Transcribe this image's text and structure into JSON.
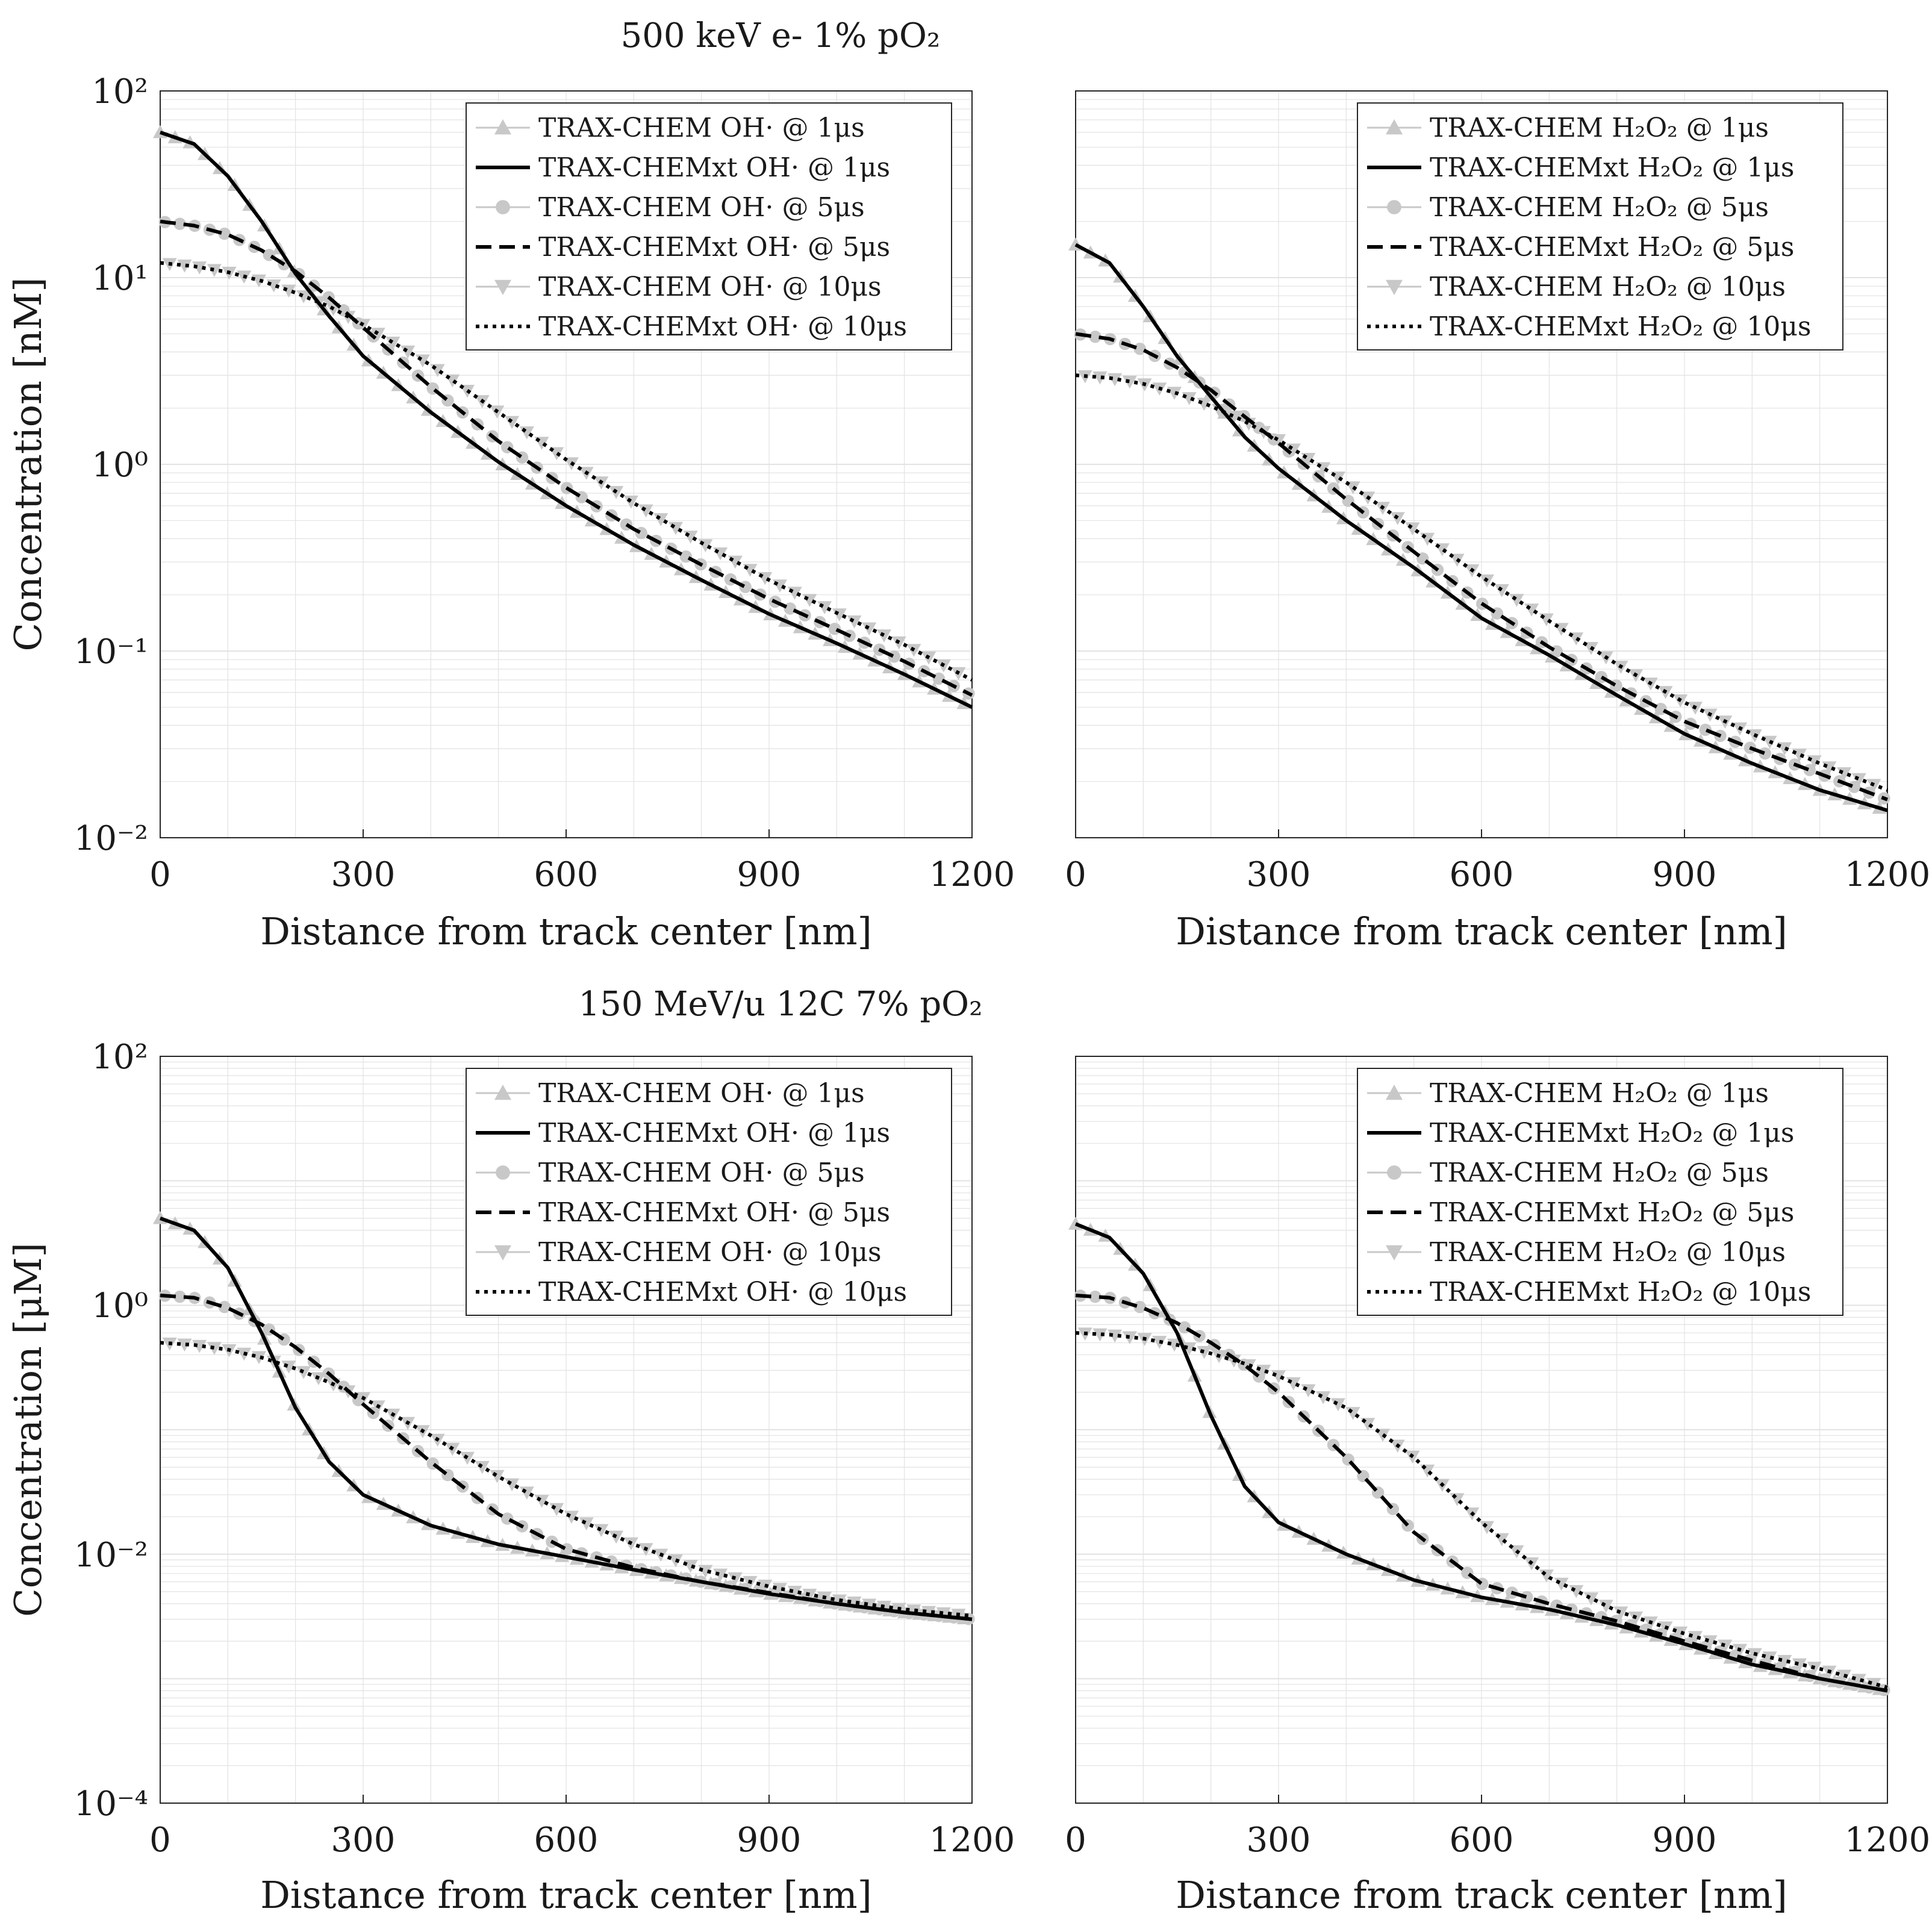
{
  "row_titles": [
    "500 keV e- 1% pO₂",
    "150 MeV/u 12C 7% pO₂"
  ],
  "ytick_labels": {
    "top": [
      "10²",
      "10¹",
      "10⁰",
      "10⁻¹",
      "10⁻²"
    ],
    "bottom": [
      "10²",
      "10⁰",
      "10⁻²",
      "10⁻⁴"
    ]
  },
  "legend": {
    "top_left": [
      "TRAX-CHEM OH· @ 1μs",
      "TRAX-CHEMxt OH· @ 1μs",
      "TRAX-CHEM OH· @ 5μs",
      "TRAX-CHEMxt OH· @ 5μs",
      "TRAX-CHEM OH· @ 10μs",
      "TRAX-CHEMxt OH· @ 10μs"
    ],
    "top_right": [
      "TRAX-CHEM H₂O₂ @ 1μs",
      "TRAX-CHEMxt H₂O₂ @ 1μs",
      "TRAX-CHEM H₂O₂ @ 5μs",
      "TRAX-CHEMxt H₂O₂ @ 5μs",
      "TRAX-CHEM H₂O₂ @ 10μs",
      "TRAX-CHEMxt H₂O₂ @ 10μs"
    ],
    "bottom_left": [
      "TRAX-CHEM OH· @ 1μs",
      "TRAX-CHEMxt OH· @ 1μs",
      "TRAX-CHEM OH· @ 5μs",
      "TRAX-CHEMxt OH· @ 5μs",
      "TRAX-CHEM OH· @ 10μs",
      "TRAX-CHEMxt OH· @ 10μs"
    ],
    "bottom_right": [
      "TRAX-CHEM H₂O₂ @ 1μs",
      "TRAX-CHEMxt H₂O₂ @ 1μs",
      "TRAX-CHEM H₂O₂ @ 5μs",
      "TRAX-CHEMxt H₂O₂ @ 5μs",
      "TRAX-CHEM H₂O₂ @ 10μs",
      "TRAX-CHEMxt H₂O₂ @ 10μs"
    ]
  },
  "colors": {
    "line": "#000000",
    "marker": "#c8c8c8",
    "grid": "#e2e2e2",
    "axis": "#262626"
  },
  "chart_data": [
    {
      "id": "top_left",
      "type": "line",
      "yscale": "log",
      "xlabel": "Distance from track center [nm]",
      "ylabel": "Concentration [nM]",
      "xlim": [
        0,
        1200
      ],
      "ylim": [
        0.01,
        100
      ],
      "xticks": [
        0,
        300,
        600,
        900,
        1200
      ],
      "yticks": [
        100,
        10,
        1,
        0.1,
        0.01
      ],
      "x": [
        0,
        50,
        100,
        150,
        200,
        250,
        300,
        400,
        500,
        600,
        700,
        800,
        900,
        1000,
        1100,
        1200
      ],
      "series": [
        {
          "name": "TRAX-CHEMxt OH· @ 1μs",
          "style": "solid",
          "values": [
            60,
            52,
            35,
            20,
            10.5,
            6.2,
            3.8,
            1.9,
            1.03,
            0.6,
            0.37,
            0.24,
            0.158,
            0.11,
            0.075,
            0.05
          ]
        },
        {
          "name": "TRAX-CHEMxt OH· @ 5μs",
          "style": "dashed",
          "values": [
            20,
            19,
            17,
            14,
            10.8,
            7.8,
            5.4,
            2.6,
            1.33,
            0.75,
            0.45,
            0.29,
            0.19,
            0.13,
            0.088,
            0.058
          ]
        },
        {
          "name": "TRAX-CHEMxt OH· @ 10μs",
          "style": "dotted",
          "values": [
            12,
            11.5,
            10.7,
            9.6,
            8.3,
            7,
            5.6,
            3.4,
            1.9,
            1.06,
            0.62,
            0.38,
            0.24,
            0.16,
            0.108,
            0.07
          ]
        }
      ]
    },
    {
      "id": "top_right",
      "type": "line",
      "yscale": "log",
      "xlabel": "Distance from track center [nm]",
      "ylabel": "",
      "xlim": [
        0,
        1200
      ],
      "ylim": [
        0.01,
        100
      ],
      "xticks": [
        0,
        300,
        600,
        900,
        1200
      ],
      "yticks": [
        100,
        10,
        1,
        0.1,
        0.01
      ],
      "x": [
        0,
        50,
        100,
        150,
        200,
        250,
        300,
        400,
        500,
        600,
        700,
        800,
        900,
        1000,
        1100,
        1200
      ],
      "series": [
        {
          "name": "TRAX-CHEMxt H₂O₂ @ 1μs",
          "style": "solid",
          "values": [
            15,
            12,
            7,
            3.8,
            2.3,
            1.4,
            0.95,
            0.5,
            0.28,
            0.15,
            0.095,
            0.058,
            0.036,
            0.025,
            0.018,
            0.014
          ]
        },
        {
          "name": "TRAX-CHEMxt H₂O₂ @ 5μs",
          "style": "dashed",
          "values": [
            5,
            4.7,
            4.1,
            3.3,
            2.5,
            1.8,
            1.3,
            0.65,
            0.34,
            0.18,
            0.105,
            0.065,
            0.042,
            0.03,
            0.022,
            0.016
          ]
        },
        {
          "name": "TRAX-CHEMxt H₂O₂ @ 10μs",
          "style": "dotted",
          "values": [
            3,
            2.9,
            2.7,
            2.4,
            2.05,
            1.7,
            1.35,
            0.8,
            0.45,
            0.25,
            0.145,
            0.085,
            0.053,
            0.036,
            0.025,
            0.018
          ]
        }
      ]
    },
    {
      "id": "bottom_left",
      "type": "line",
      "yscale": "log",
      "xlabel": "Distance from track center [nm]",
      "ylabel": "Concentration [μM]",
      "xlim": [
        0,
        1200
      ],
      "ylim": [
        0.0001,
        100
      ],
      "xticks": [
        0,
        300,
        600,
        900,
        1200
      ],
      "yticks": [
        100,
        1,
        0.01,
        0.0001
      ],
      "x": [
        0,
        50,
        100,
        150,
        200,
        250,
        300,
        400,
        500,
        600,
        700,
        800,
        900,
        1000,
        1100,
        1200
      ],
      "series": [
        {
          "name": "TRAX-CHEMxt OH· @ 1μs",
          "style": "solid",
          "values": [
            5,
            4,
            2,
            0.6,
            0.15,
            0.055,
            0.03,
            0.017,
            0.012,
            0.0095,
            0.0075,
            0.006,
            0.0048,
            0.004,
            0.0034,
            0.003
          ]
        },
        {
          "name": "TRAX-CHEMxt OH· @ 5μs",
          "style": "dashed",
          "values": [
            1.2,
            1.15,
            0.95,
            0.7,
            0.46,
            0.28,
            0.16,
            0.055,
            0.021,
            0.011,
            0.0078,
            0.006,
            0.0049,
            0.004,
            0.0034,
            0.003
          ]
        },
        {
          "name": "TRAX-CHEMxt OH· @ 10μs",
          "style": "dotted",
          "values": [
            0.5,
            0.48,
            0.44,
            0.38,
            0.31,
            0.24,
            0.18,
            0.09,
            0.042,
            0.021,
            0.012,
            0.0075,
            0.0055,
            0.0043,
            0.0036,
            0.0032
          ]
        }
      ]
    },
    {
      "id": "bottom_right",
      "type": "line",
      "yscale": "log",
      "xlabel": "Distance from track center [nm]",
      "ylabel": "",
      "xlim": [
        0,
        1200
      ],
      "ylim": [
        0.0001,
        100
      ],
      "xticks": [
        0,
        300,
        600,
        900,
        1200
      ],
      "yticks": [
        100,
        1,
        0.01,
        0.0001
      ],
      "x": [
        0,
        50,
        100,
        150,
        200,
        250,
        300,
        400,
        500,
        600,
        700,
        800,
        900,
        1000,
        1100,
        1200
      ],
      "series": [
        {
          "name": "TRAX-CHEMxt H₂O₂ @ 1μs",
          "style": "solid",
          "values": [
            4.5,
            3.5,
            1.8,
            0.6,
            0.13,
            0.035,
            0.018,
            0.01,
            0.0062,
            0.0045,
            0.0036,
            0.0027,
            0.0019,
            0.0013,
            0.001,
            0.0008
          ]
        },
        {
          "name": "TRAX-CHEMxt H₂O₂ @ 5μs",
          "style": "dashed",
          "values": [
            1.2,
            1.15,
            0.95,
            0.72,
            0.5,
            0.33,
            0.2,
            0.06,
            0.015,
            0.0058,
            0.004,
            0.0029,
            0.002,
            0.0014,
            0.001,
            0.0008
          ]
        },
        {
          "name": "TRAX-CHEMxt H₂O₂ @ 10μs",
          "style": "dotted",
          "values": [
            0.6,
            0.58,
            0.54,
            0.48,
            0.41,
            0.34,
            0.27,
            0.15,
            0.06,
            0.018,
            0.0065,
            0.0035,
            0.0023,
            0.0016,
            0.0012,
            0.00085
          ]
        }
      ]
    }
  ]
}
